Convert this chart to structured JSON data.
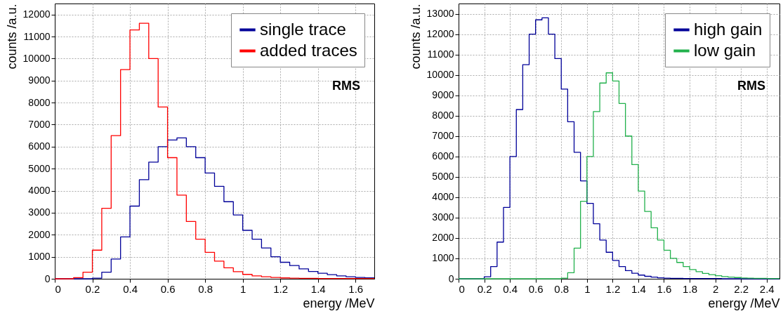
{
  "chart_data": [
    {
      "type": "histogram",
      "xlabel": "energy /MeV",
      "ylabel": "counts /a.u.",
      "grid": true,
      "legend": "top right",
      "annotations": [
        "RMS"
      ],
      "xlim": [
        0,
        1.7
      ],
      "ylim": [
        0,
        12500
      ],
      "xticks": [
        0,
        0.2,
        0.4,
        0.6,
        0.8,
        1,
        1.2,
        1.4,
        1.6
      ],
      "yticks": [
        0,
        1000,
        2000,
        3000,
        4000,
        5000,
        6000,
        7000,
        8000,
        9000,
        10000,
        11000,
        12000
      ],
      "bins": [
        0,
        0.05,
        0.1,
        0.15,
        0.2,
        0.25,
        0.3,
        0.35,
        0.4,
        0.45,
        0.5,
        0.55,
        0.6,
        0.65,
        0.7,
        0.75,
        0.8,
        0.85,
        0.9,
        0.95,
        1,
        1.05,
        1.1,
        1.15,
        1.2,
        1.25,
        1.3,
        1.35,
        1.4,
        1.45,
        1.5,
        1.55,
        1.6,
        1.65,
        1.7
      ],
      "series": [
        {
          "name": "single trace",
          "color": "#000099",
          "values": [
            0,
            0,
            0,
            0,
            30,
            300,
            900,
            1900,
            3300,
            4500,
            5300,
            6000,
            6300,
            6400,
            6000,
            5500,
            4800,
            4200,
            3500,
            2900,
            2200,
            1800,
            1400,
            1000,
            750,
            600,
            450,
            330,
            250,
            190,
            130,
            90,
            60,
            40
          ]
        },
        {
          "name": "added traces",
          "color": "#ff0000",
          "values": [
            0,
            0,
            50,
            300,
            1300,
            3200,
            6500,
            9500,
            11300,
            11600,
            10000,
            7800,
            5500,
            3800,
            2600,
            1800,
            1200,
            800,
            500,
            320,
            200,
            130,
            90,
            60,
            40,
            30,
            20,
            20,
            10,
            10,
            10,
            10,
            10,
            10
          ]
        }
      ]
    },
    {
      "type": "histogram",
      "xlabel": "energy /MeV",
      "ylabel": "counts /a.u.",
      "grid": true,
      "legend": "top right",
      "annotations": [
        "RMS"
      ],
      "xlim": [
        0,
        2.5
      ],
      "ylim": [
        0,
        13500
      ],
      "xticks": [
        0,
        0.2,
        0.4,
        0.6,
        0.8,
        1,
        1.2,
        1.4,
        1.6,
        1.8,
        2,
        2.2,
        2.4
      ],
      "yticks": [
        0,
        1000,
        2000,
        3000,
        4000,
        5000,
        6000,
        7000,
        8000,
        9000,
        10000,
        11000,
        12000,
        13000
      ],
      "bins": [
        0,
        0.05,
        0.1,
        0.15,
        0.2,
        0.25,
        0.3,
        0.35,
        0.4,
        0.45,
        0.5,
        0.55,
        0.6,
        0.65,
        0.7,
        0.75,
        0.8,
        0.85,
        0.9,
        0.95,
        1,
        1.05,
        1.1,
        1.15,
        1.2,
        1.25,
        1.3,
        1.35,
        1.4,
        1.45,
        1.5,
        1.55,
        1.6,
        1.65,
        1.7,
        1.75,
        1.8,
        1.85,
        1.9,
        1.95,
        2,
        2.05,
        2.1,
        2.15,
        2.2,
        2.25,
        2.3,
        2.35,
        2.4,
        2.45,
        2.5
      ],
      "series": [
        {
          "name": "high gain",
          "color": "#000099",
          "values": [
            0,
            0,
            0,
            0,
            100,
            600,
            1800,
            3500,
            6000,
            8300,
            10500,
            12000,
            12700,
            12800,
            12000,
            10800,
            9300,
            7700,
            6200,
            4800,
            3700,
            2700,
            1900,
            1300,
            900,
            600,
            400,
            270,
            180,
            120,
            80,
            50,
            30,
            20,
            20,
            10,
            10,
            10,
            10,
            10,
            10,
            0,
            0,
            0,
            0,
            0,
            0,
            0,
            0,
            0
          ]
        },
        {
          "name": "low gain",
          "color": "#22b14c",
          "values": [
            0,
            0,
            0,
            0,
            0,
            0,
            0,
            0,
            0,
            0,
            0,
            0,
            0,
            0,
            0,
            0,
            30,
            300,
            1500,
            3800,
            6000,
            8200,
            9600,
            10100,
            9700,
            8600,
            7000,
            5600,
            4300,
            3300,
            2500,
            1900,
            1400,
            1000,
            800,
            600,
            450,
            350,
            260,
            200,
            150,
            110,
            80,
            60,
            40,
            30,
            20,
            20,
            10,
            10
          ]
        }
      ]
    }
  ]
}
